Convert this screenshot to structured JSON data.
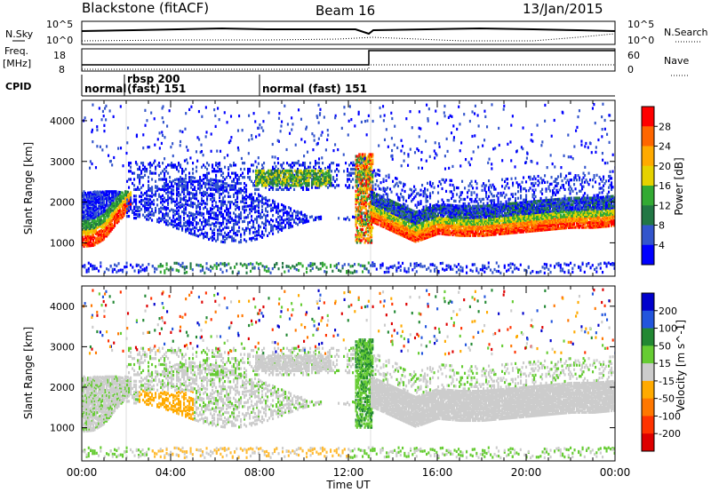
{
  "header": {
    "station": "Blackstone (fitACF)",
    "beam": "Beam 16",
    "date": "13/Jan/2015"
  },
  "panels": {
    "nsky": {
      "left_label": "N.Sky",
      "right_label": "N.Search",
      "left_ticks": [
        "10^5",
        "10^0"
      ],
      "right_ticks": [
        "10^5",
        "10^0"
      ]
    },
    "freq": {
      "left_label_1": "Freq.",
      "left_label_2": "[MHz]",
      "right_label": "Nave",
      "left_ticks": [
        "18",
        "8"
      ],
      "right_ticks": [
        "60",
        "0"
      ]
    },
    "cpid": {
      "label": "CPID",
      "segments": [
        {
          "text": "normal",
          "start": 0.0
        },
        {
          "text": "rbsp 200",
          "start": 1.95
        },
        {
          "text": "(fast)  151",
          "start": 1.95
        },
        {
          "text": "normal (fast)  151",
          "start": 8.0
        }
      ],
      "dividers": [
        1.9,
        8.0
      ]
    }
  },
  "chart_data": [
    {
      "type": "heatmap",
      "name": "power",
      "ylabel": "Slant Range [km]",
      "yticks": [
        "4000",
        "3000",
        "2000",
        "1000"
      ],
      "ylim": [
        180,
        4500
      ],
      "xlim": [
        0,
        24
      ],
      "colorbar": {
        "label": "Power [dB]",
        "ticks": [
          "28",
          "24",
          "20",
          "16",
          "12",
          "8",
          "4"
        ],
        "colors": [
          "#ff0000",
          "#ff6600",
          "#ffaa00",
          "#e6d200",
          "#33aa33",
          "#227744",
          "#3355cc",
          "#0000ff"
        ]
      },
      "series": [
        {
          "x": [
            0,
            0.5,
            1.0,
            1.5,
            2.0
          ],
          "y": [
            1050,
            1080,
            1250,
            1600,
            1900
          ]
        },
        {
          "x": [
            13.0,
            14.0,
            15.0,
            16.0,
            17.0,
            18.0,
            19.0,
            20.0,
            21.0,
            22.0,
            23.0,
            24.0
          ],
          "y": [
            1600,
            1350,
            1100,
            1300,
            1250,
            1250,
            1300,
            1350,
            1400,
            1450,
            1450,
            1500
          ]
        }
      ]
    },
    {
      "type": "heatmap",
      "name": "velocity",
      "ylabel": "Slant Range [km]",
      "yticks": [
        "4000",
        "3000",
        "2000",
        "1000"
      ],
      "ylim": [
        180,
        4500
      ],
      "xlim": [
        0,
        24
      ],
      "xlabel": "Time UT",
      "xticks": [
        "00:00",
        "04:00",
        "08:00",
        "12:00",
        "16:00",
        "20:00",
        "00:00"
      ],
      "colorbar": {
        "label": "Velocity [m s^-1]",
        "ticks": [
          "200",
          "100",
          "50",
          "15",
          "-15",
          "-50",
          "-100",
          "-200"
        ],
        "colors": [
          "#0000cc",
          "#2255dd",
          "#228833",
          "#66cc33",
          "#cccccc",
          "#ffaa00",
          "#ff7700",
          "#ff3300",
          "#dd0000"
        ]
      }
    }
  ]
}
